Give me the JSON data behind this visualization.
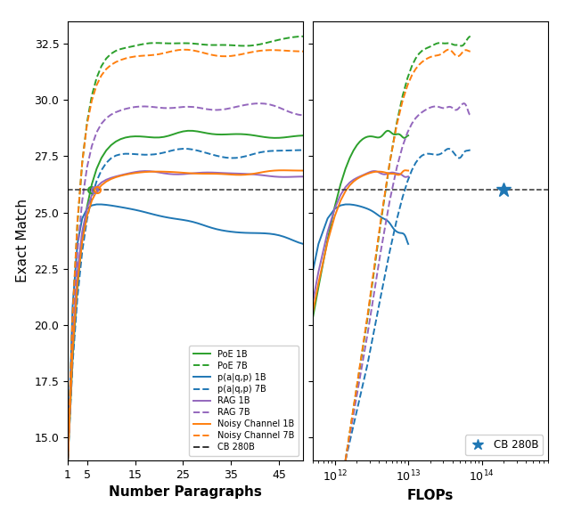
{
  "ylabel": "Exact Match",
  "xlabel_left": "Number Paragraphs",
  "xlabel_right": "FLOPs",
  "ylim": [
    14.0,
    33.5
  ],
  "yticks": [
    15.0,
    17.5,
    20.0,
    22.5,
    25.0,
    27.5,
    30.0,
    32.5
  ],
  "cb_280b_value": 26.0,
  "cb_flops": 200000000000000.0,
  "colors": {
    "PoE": "#2ca02c",
    "paqp": "#1f77b4",
    "RAG": "#9467bd",
    "NoisyChannel": "#ff7f0e",
    "CB": "#333333"
  },
  "flops_1b_range": [
    11.0,
    13.0
  ],
  "flops_7b_range": [
    11.85,
    14.1
  ],
  "flops_xlim": [
    500000000000.0,
    800000000000000.0
  ],
  "legend_entries": [
    {
      "label": "PoE 1B",
      "color": "#2ca02c",
      "linestyle": "solid"
    },
    {
      "label": "PoE 7B",
      "color": "#2ca02c",
      "linestyle": "dashed"
    },
    {
      "label": "p(a|q,p) 1B",
      "color": "#1f77b4",
      "linestyle": "solid"
    },
    {
      "label": "p(a|q,p) 7B",
      "color": "#1f77b4",
      "linestyle": "dashed"
    },
    {
      "label": "RAG 1B",
      "color": "#9467bd",
      "linestyle": "solid"
    },
    {
      "label": "RAG 7B",
      "color": "#9467bd",
      "linestyle": "dashed"
    },
    {
      "label": "Noisy Channel 1B",
      "color": "#ff7f0e",
      "linestyle": "solid"
    },
    {
      "label": "Noisy Channel 7B",
      "color": "#ff7f0e",
      "linestyle": "dashed"
    },
    {
      "label": "CB 280B",
      "color": "#333333",
      "linestyle": "dashed"
    }
  ]
}
